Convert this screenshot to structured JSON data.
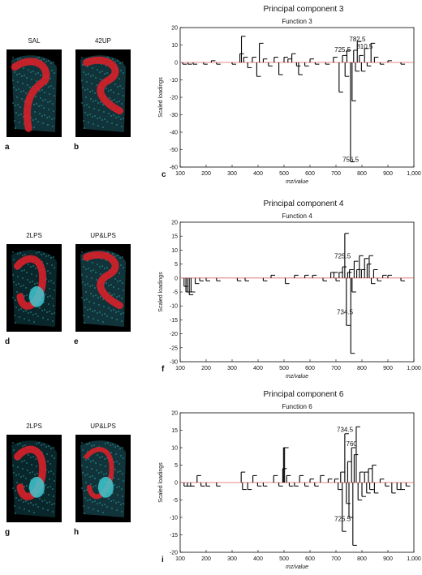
{
  "figure": {
    "rows": [
      {
        "images": [
          {
            "title": "SAL",
            "letter": "a"
          },
          {
            "title": "42UP",
            "letter": "b"
          }
        ],
        "chart_letter": "c"
      },
      {
        "images": [
          {
            "title": "2LPS",
            "letter": "d"
          },
          {
            "title": "UP&LPS",
            "letter": "e"
          }
        ],
        "chart_letter": "f"
      },
      {
        "images": [
          {
            "title": "2LPS",
            "letter": "g"
          },
          {
            "title": "UP&LPS",
            "letter": "h"
          }
        ],
        "chart_letter": "i"
      }
    ]
  },
  "colors": {
    "spectrum": "#000000",
    "baseline": "#e06060",
    "tissue_red": "#d8202a",
    "tissue_cyan": "#40c8d0"
  },
  "chart_data": [
    {
      "type": "bar",
      "title": "Principal component 3",
      "subtitle": "Function 3",
      "xlabel": "mz/value",
      "ylabel": "Scaled loadings",
      "xlim": [
        100,
        1000
      ],
      "ylim": [
        -60,
        20
      ],
      "xticks": [
        100,
        200,
        300,
        400,
        500,
        600,
        700,
        800,
        900,
        1000
      ],
      "xtick_labels": [
        "100",
        "200",
        "300",
        "400",
        "500",
        "600",
        "700",
        "800",
        "900",
        "1,000"
      ],
      "yticks": [
        -60,
        -50,
        -40,
        -30,
        -20,
        -10,
        0,
        10,
        20
      ],
      "annotations": [
        {
          "text": "725.5",
          "x": 725.5,
          "y": 6
        },
        {
          "text": "782.5",
          "x": 782.5,
          "y": 12
        },
        {
          "text": "810.5",
          "x": 810.5,
          "y": 8
        },
        {
          "text": "756.5",
          "x": 756.5,
          "y": -57
        }
      ],
      "peaks": [
        [
          110,
          -1
        ],
        [
          130,
          -1
        ],
        [
          150,
          -1
        ],
        [
          190,
          -1
        ],
        [
          220,
          1
        ],
        [
          240,
          -1
        ],
        [
          300,
          -1
        ],
        [
          330,
          5
        ],
        [
          336,
          15
        ],
        [
          345,
          3
        ],
        [
          360,
          -3
        ],
        [
          378,
          3
        ],
        [
          395,
          -8
        ],
        [
          405,
          11
        ],
        [
          420,
          2
        ],
        [
          440,
          -2
        ],
        [
          462,
          3
        ],
        [
          480,
          -7
        ],
        [
          500,
          3
        ],
        [
          515,
          2
        ],
        [
          530,
          5
        ],
        [
          548,
          -2
        ],
        [
          556,
          -7
        ],
        [
          580,
          -2
        ],
        [
          600,
          2
        ],
        [
          620,
          -1
        ],
        [
          660,
          -1
        ],
        [
          690,
          3
        ],
        [
          712,
          -17
        ],
        [
          725,
          4
        ],
        [
          735,
          -8
        ],
        [
          742,
          7
        ],
        [
          756,
          -57
        ],
        [
          762,
          -22
        ],
        [
          768,
          7
        ],
        [
          775,
          -5
        ],
        [
          782,
          12
        ],
        [
          790,
          4
        ],
        [
          798,
          -5
        ],
        [
          810,
          8
        ],
        [
          820,
          -2
        ],
        [
          835,
          11
        ],
        [
          848,
          3
        ],
        [
          870,
          -1
        ],
        [
          900,
          1
        ],
        [
          950,
          -1
        ]
      ]
    },
    {
      "type": "bar",
      "title": "Principal component 4",
      "subtitle": "Function 4",
      "xlabel": "mz/value",
      "ylabel": "Scaled loadings",
      "xlim": [
        100,
        1000
      ],
      "ylim": [
        -30,
        20
      ],
      "xticks": [
        100,
        200,
        300,
        400,
        500,
        600,
        700,
        800,
        900,
        1000
      ],
      "xtick_labels": [
        "100",
        "200",
        "300",
        "400",
        "500",
        "600",
        "700",
        "800",
        "900",
        "1,000"
      ],
      "yticks": [
        -30,
        -25,
        -20,
        -15,
        -10,
        -5,
        0,
        5,
        10,
        15,
        20
      ],
      "annotations": [
        {
          "text": "725.5",
          "x": 725.5,
          "y": 7
        },
        {
          "text": "734.5",
          "x": 734.5,
          "y": -13
        }
      ],
      "peaks": [
        [
          115,
          -3
        ],
        [
          122,
          -5
        ],
        [
          128,
          -5
        ],
        [
          135,
          -6
        ],
        [
          142,
          -5
        ],
        [
          158,
          -2
        ],
        [
          175,
          -1
        ],
        [
          200,
          -1
        ],
        [
          240,
          -1
        ],
        [
          320,
          -1
        ],
        [
          350,
          -1
        ],
        [
          420,
          -1
        ],
        [
          450,
          1
        ],
        [
          505,
          -2
        ],
        [
          540,
          1
        ],
        [
          580,
          1
        ],
        [
          610,
          1
        ],
        [
          650,
          -1
        ],
        [
          680,
          2
        ],
        [
          692,
          2
        ],
        [
          700,
          -1
        ],
        [
          712,
          2
        ],
        [
          725,
          4
        ],
        [
          734,
          16
        ],
        [
          740,
          -17
        ],
        [
          745,
          2
        ],
        [
          752,
          3
        ],
        [
          757,
          -27
        ],
        [
          762,
          -5
        ],
        [
          770,
          6
        ],
        [
          780,
          3
        ],
        [
          790,
          8
        ],
        [
          798,
          3
        ],
        [
          810,
          7
        ],
        [
          820,
          5
        ],
        [
          828,
          8
        ],
        [
          836,
          -2
        ],
        [
          845,
          3
        ],
        [
          860,
          -1
        ],
        [
          880,
          1
        ],
        [
          900,
          1
        ],
        [
          950,
          -1
        ]
      ]
    },
    {
      "type": "bar",
      "title": "Principal component 6",
      "subtitle": "Function 6",
      "xlabel": "mz/value",
      "ylabel": "Scaled loadings",
      "xlim": [
        100,
        1000
      ],
      "ylim": [
        -20,
        20
      ],
      "xticks": [
        100,
        200,
        300,
        400,
        500,
        600,
        700,
        800,
        900,
        1000
      ],
      "xtick_labels": [
        "100",
        "200",
        "300",
        "400",
        "500",
        "600",
        "700",
        "800",
        "900",
        "1,000"
      ],
      "yticks": [
        -20,
        -15,
        -10,
        -5,
        0,
        5,
        10,
        15,
        20
      ],
      "annotations": [
        {
          "text": "734.5",
          "x": 734.5,
          "y": 14.5
        },
        {
          "text": "760",
          "x": 760,
          "y": 10.5
        },
        {
          "text": "725.5",
          "x": 725.5,
          "y": -11
        }
      ],
      "peaks": [
        [
          115,
          -1
        ],
        [
          128,
          -1
        ],
        [
          140,
          -1
        ],
        [
          165,
          2
        ],
        [
          180,
          -1
        ],
        [
          200,
          -1
        ],
        [
          240,
          -1
        ],
        [
          335,
          3
        ],
        [
          340,
          -2
        ],
        [
          360,
          -2
        ],
        [
          380,
          2
        ],
        [
          398,
          -1
        ],
        [
          420,
          -1
        ],
        [
          460,
          2
        ],
        [
          480,
          -1
        ],
        [
          495,
          4
        ],
        [
          498,
          10
        ],
        [
          502,
          10
        ],
        [
          510,
          2
        ],
        [
          520,
          -1
        ],
        [
          540,
          -1
        ],
        [
          560,
          2
        ],
        [
          580,
          -1
        ],
        [
          600,
          1
        ],
        [
          618,
          -1
        ],
        [
          640,
          2
        ],
        [
          670,
          1
        ],
        [
          695,
          1
        ],
        [
          708,
          -2
        ],
        [
          718,
          3
        ],
        [
          724,
          -14
        ],
        [
          734,
          14
        ],
        [
          740,
          -6
        ],
        [
          745,
          6
        ],
        [
          750,
          -10
        ],
        [
          760,
          10
        ],
        [
          765,
          -18
        ],
        [
          770,
          8
        ],
        [
          778,
          16
        ],
        [
          785,
          -5
        ],
        [
          792,
          3
        ],
        [
          800,
          -4
        ],
        [
          810,
          3
        ],
        [
          818,
          -3
        ],
        [
          825,
          4
        ],
        [
          830,
          -2
        ],
        [
          840,
          5
        ],
        [
          848,
          -3
        ],
        [
          870,
          1
        ],
        [
          890,
          -1
        ],
        [
          915,
          -3
        ],
        [
          935,
          -2
        ],
        [
          950,
          -2
        ],
        [
          970,
          -1
        ]
      ]
    }
  ]
}
